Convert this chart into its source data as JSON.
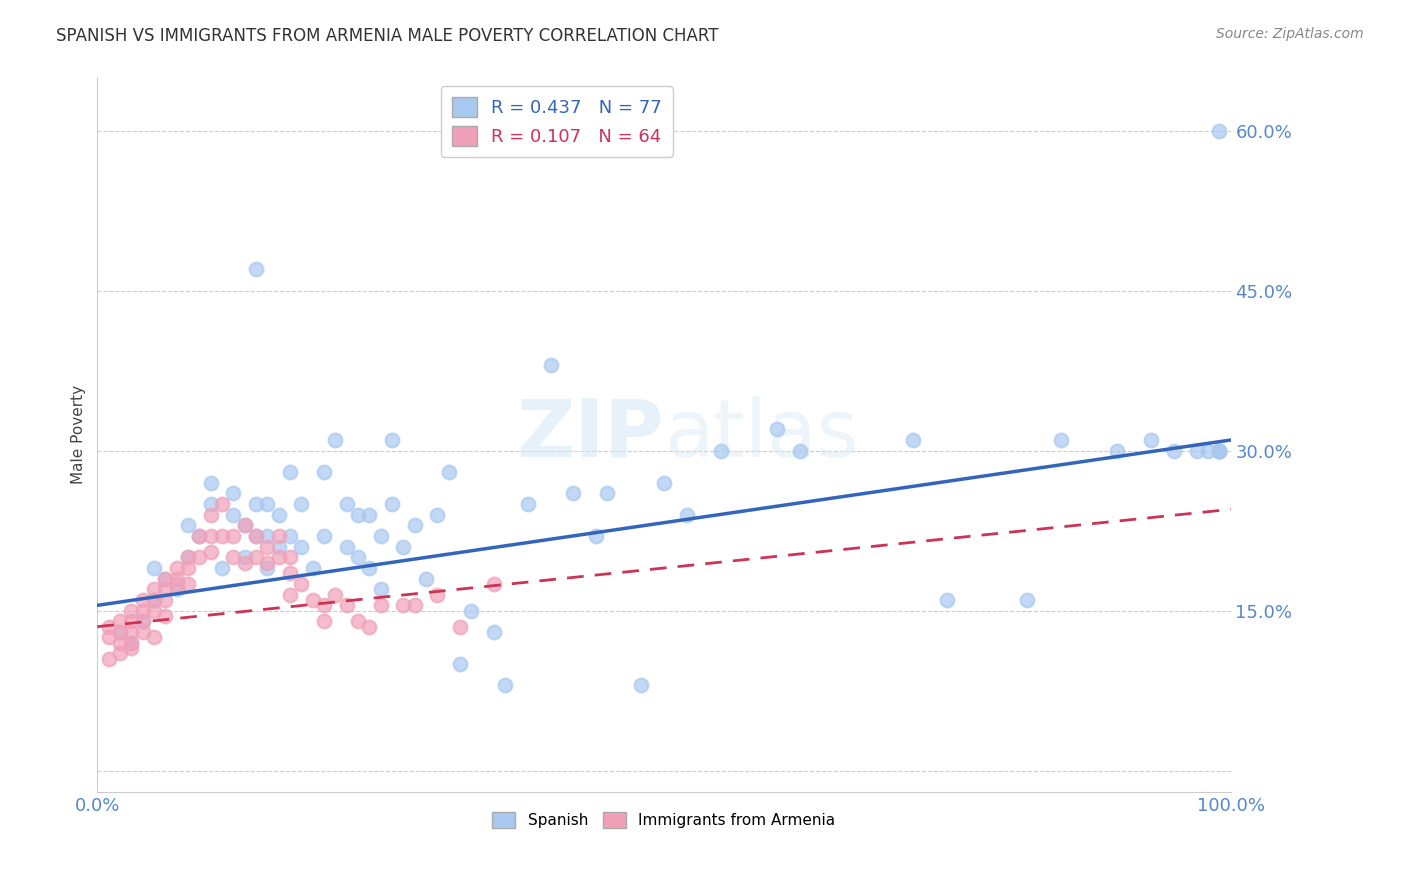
{
  "title": "SPANISH VS IMMIGRANTS FROM ARMENIA MALE POVERTY CORRELATION CHART",
  "source": "Source: ZipAtlas.com",
  "ylabel": "Male Poverty",
  "xlim": [
    0,
    1
  ],
  "ylim": [
    -0.02,
    0.65
  ],
  "yticks": [
    0.0,
    0.15,
    0.3,
    0.45,
    0.6
  ],
  "bg_color": "#ffffff",
  "grid_color": "#cccccc",
  "watermark": "ZIPatlas",
  "spanish_R": 0.437,
  "spanish_N": 77,
  "armenia_R": 0.107,
  "armenia_N": 64,
  "spanish_color": "#a8c8f0",
  "armenia_color": "#f0a0b8",
  "spanish_line_color": "#3366bb",
  "armenia_line_color": "#cc3355",
  "tick_color": "#5588cc",
  "spanish_x": [
    0.02,
    0.03,
    0.04,
    0.05,
    0.05,
    0.06,
    0.07,
    0.08,
    0.08,
    0.09,
    0.1,
    0.1,
    0.11,
    0.12,
    0.12,
    0.13,
    0.13,
    0.14,
    0.14,
    0.14,
    0.15,
    0.15,
    0.15,
    0.16,
    0.16,
    0.17,
    0.17,
    0.18,
    0.18,
    0.19,
    0.2,
    0.2,
    0.21,
    0.22,
    0.22,
    0.23,
    0.23,
    0.24,
    0.24,
    0.25,
    0.25,
    0.26,
    0.26,
    0.27,
    0.28,
    0.29,
    0.3,
    0.31,
    0.32,
    0.33,
    0.35,
    0.36,
    0.38,
    0.4,
    0.42,
    0.44,
    0.45,
    0.48,
    0.5,
    0.52,
    0.55,
    0.6,
    0.62,
    0.72,
    0.75,
    0.82,
    0.85,
    0.9,
    0.93,
    0.95,
    0.97,
    0.98,
    0.99,
    0.99,
    0.99,
    0.99,
    0.99
  ],
  "spanish_y": [
    0.13,
    0.12,
    0.14,
    0.16,
    0.19,
    0.18,
    0.17,
    0.2,
    0.23,
    0.22,
    0.25,
    0.27,
    0.19,
    0.24,
    0.26,
    0.2,
    0.23,
    0.47,
    0.22,
    0.25,
    0.19,
    0.22,
    0.25,
    0.21,
    0.24,
    0.28,
    0.22,
    0.21,
    0.25,
    0.19,
    0.22,
    0.28,
    0.31,
    0.21,
    0.25,
    0.2,
    0.24,
    0.19,
    0.24,
    0.17,
    0.22,
    0.31,
    0.25,
    0.21,
    0.23,
    0.18,
    0.24,
    0.28,
    0.1,
    0.15,
    0.13,
    0.08,
    0.25,
    0.38,
    0.26,
    0.22,
    0.26,
    0.08,
    0.27,
    0.24,
    0.3,
    0.32,
    0.3,
    0.31,
    0.16,
    0.16,
    0.31,
    0.3,
    0.31,
    0.3,
    0.3,
    0.3,
    0.3,
    0.3,
    0.3,
    0.3,
    0.6
  ],
  "armenia_x": [
    0.01,
    0.01,
    0.01,
    0.02,
    0.02,
    0.02,
    0.02,
    0.03,
    0.03,
    0.03,
    0.03,
    0.03,
    0.04,
    0.04,
    0.04,
    0.04,
    0.05,
    0.05,
    0.05,
    0.05,
    0.06,
    0.06,
    0.06,
    0.06,
    0.07,
    0.07,
    0.07,
    0.08,
    0.08,
    0.08,
    0.09,
    0.09,
    0.1,
    0.1,
    0.1,
    0.11,
    0.11,
    0.12,
    0.12,
    0.13,
    0.13,
    0.14,
    0.14,
    0.15,
    0.15,
    0.16,
    0.16,
    0.17,
    0.17,
    0.17,
    0.18,
    0.19,
    0.2,
    0.2,
    0.21,
    0.22,
    0.23,
    0.24,
    0.25,
    0.27,
    0.28,
    0.3,
    0.32,
    0.35
  ],
  "armenia_y": [
    0.135,
    0.125,
    0.105,
    0.14,
    0.13,
    0.12,
    0.11,
    0.15,
    0.14,
    0.13,
    0.12,
    0.115,
    0.16,
    0.15,
    0.14,
    0.13,
    0.17,
    0.16,
    0.15,
    0.125,
    0.18,
    0.17,
    0.16,
    0.145,
    0.19,
    0.18,
    0.175,
    0.2,
    0.19,
    0.175,
    0.22,
    0.2,
    0.24,
    0.22,
    0.205,
    0.25,
    0.22,
    0.22,
    0.2,
    0.23,
    0.195,
    0.22,
    0.2,
    0.21,
    0.195,
    0.22,
    0.2,
    0.2,
    0.185,
    0.165,
    0.175,
    0.16,
    0.155,
    0.14,
    0.165,
    0.155,
    0.14,
    0.135,
    0.155,
    0.155,
    0.155,
    0.165,
    0.135,
    0.175
  ],
  "sp_line_x0": 0.0,
  "sp_line_y0": 0.155,
  "sp_line_x1": 1.0,
  "sp_line_y1": 0.31,
  "ar_line_x0": 0.0,
  "ar_line_y0": 0.135,
  "ar_line_x1": 1.0,
  "ar_line_y1": 0.245
}
